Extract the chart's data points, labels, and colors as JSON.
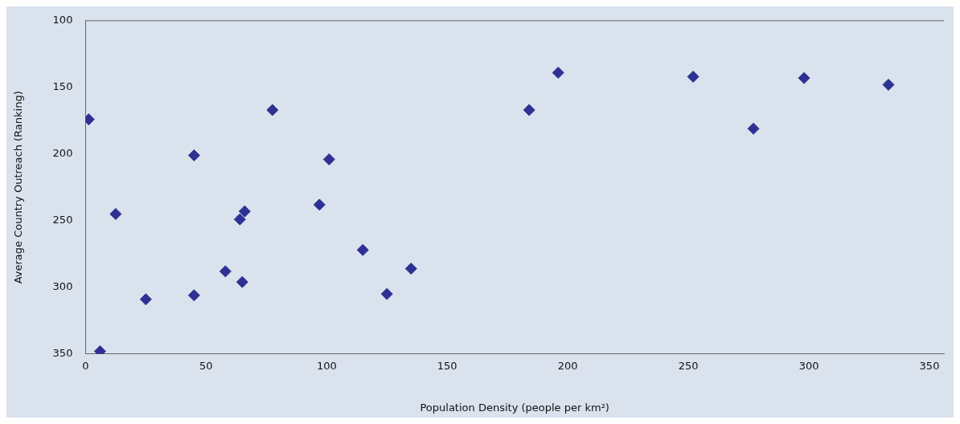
{
  "chart_data": {
    "type": "scatter",
    "xlabel": "Population Density (people per km²)",
    "ylabel": "Average Country Outreach (Ranking)",
    "xlim": [
      0,
      356
    ],
    "xticks": [
      0,
      50,
      100,
      150,
      200,
      250,
      300,
      350
    ],
    "ylim": [
      350,
      100
    ],
    "yticks": [
      100,
      150,
      200,
      250,
      300,
      350
    ],
    "grid": false,
    "legend": false,
    "marker": "diamond",
    "series": [
      {
        "color": "#2e3192",
        "x": [
          1.3,
          12.5,
          6,
          25,
          45,
          45,
          58,
          65,
          64,
          66,
          77.5,
          97,
          101,
          115,
          125,
          135,
          184,
          196,
          252,
          277,
          298,
          333
        ],
        "values": [
          174,
          245,
          348,
          309,
          201,
          306,
          288,
          296,
          249,
          243,
          167,
          238,
          204,
          272,
          305,
          286,
          167,
          139,
          142,
          181,
          143,
          148
        ]
      }
    ]
  }
}
